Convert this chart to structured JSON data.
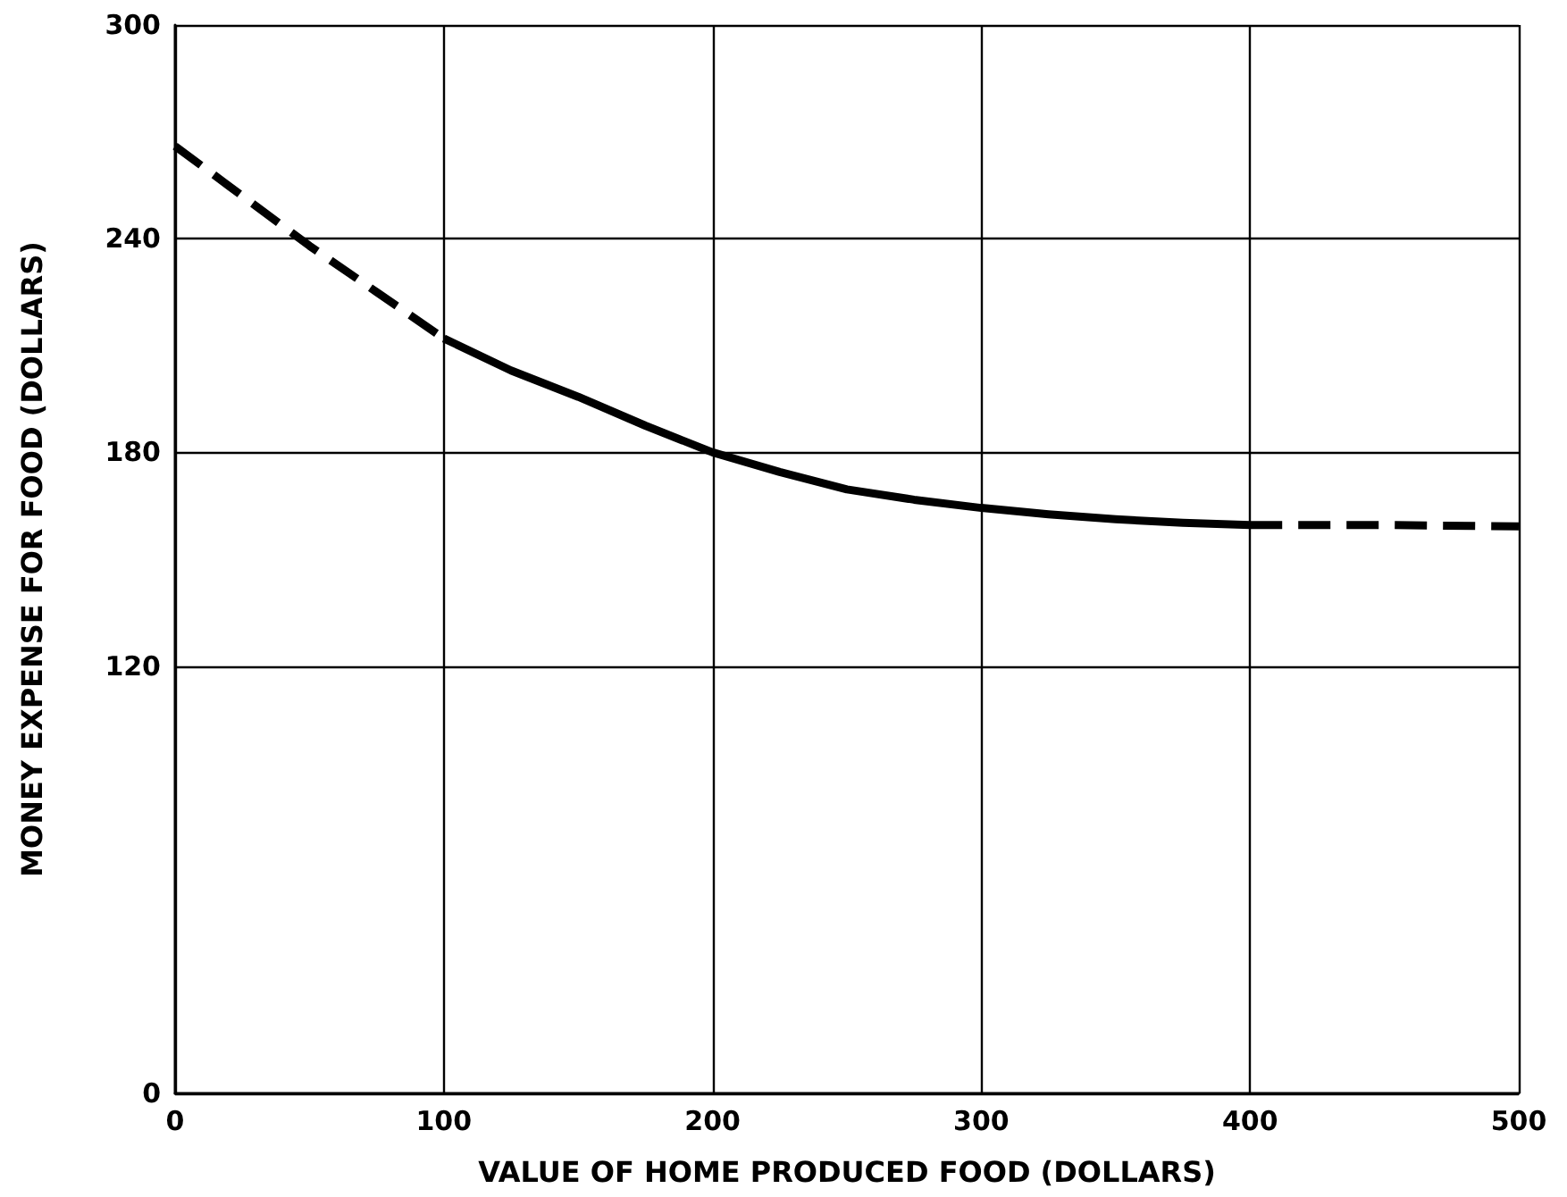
{
  "chart_data": {
    "type": "line",
    "xlabel": "VALUE OF HOME PRODUCED FOOD (DOLLARS)",
    "ylabel": "MONEY EXPENSE FOR FOOD (DOLLARS)",
    "xlim": [
      0,
      500
    ],
    "xticks": [
      0,
      100,
      200,
      300,
      400,
      500
    ],
    "ylim": [
      0,
      300
    ],
    "yticks": [
      0,
      120,
      180,
      240,
      300
    ],
    "grid": true,
    "series": [
      {
        "color": "#000000",
        "line_style": "dashed",
        "x": [
          0,
          25,
          50,
          75,
          100
        ],
        "values": [
          266,
          252,
          238,
          225,
          212
        ]
      },
      {
        "color": "#000000",
        "line_style": "solid",
        "x": [
          100,
          125,
          150,
          175,
          200,
          225,
          250,
          275,
          300,
          325,
          350,
          375,
          400
        ],
        "values": [
          212,
          203,
          195.6,
          187.5,
          180,
          174.5,
          169.6,
          166.7,
          164.4,
          162.6,
          161.2,
          160.2,
          159.6
        ]
      },
      {
        "color": "#000000",
        "line_style": "dashed",
        "x": [
          400,
          450,
          500
        ],
        "values": [
          159.6,
          159.6,
          159.2
        ]
      }
    ]
  }
}
